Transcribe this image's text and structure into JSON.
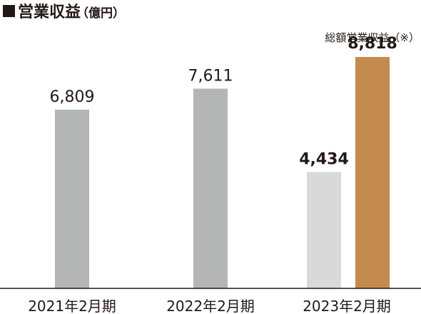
{
  "title": {
    "mark": "■",
    "main": "営業収益",
    "unit": "（億円）"
  },
  "chart_data": {
    "type": "bar",
    "title": "営業収益（億円）",
    "categories": [
      "2021年2月期",
      "2022年2月期",
      "2023年2月期"
    ],
    "series": [
      {
        "values": [
          6809,
          7611,
          4434
        ],
        "labels": [
          "6,809",
          "7,611",
          "4,434"
        ]
      },
      {
        "name": "総額営業収益（※）",
        "values": [
          null,
          null,
          8818
        ],
        "labels": [
          null,
          null,
          "8,818"
        ]
      }
    ],
    "ylim": [
      0,
      10000
    ],
    "grid": false,
    "colors": {
      "bar_dark": "#b4b5b5",
      "bar_light": "#d9d9d9",
      "bar_total": "#c48a4e",
      "axis": "#231815",
      "text": "#231815"
    }
  }
}
